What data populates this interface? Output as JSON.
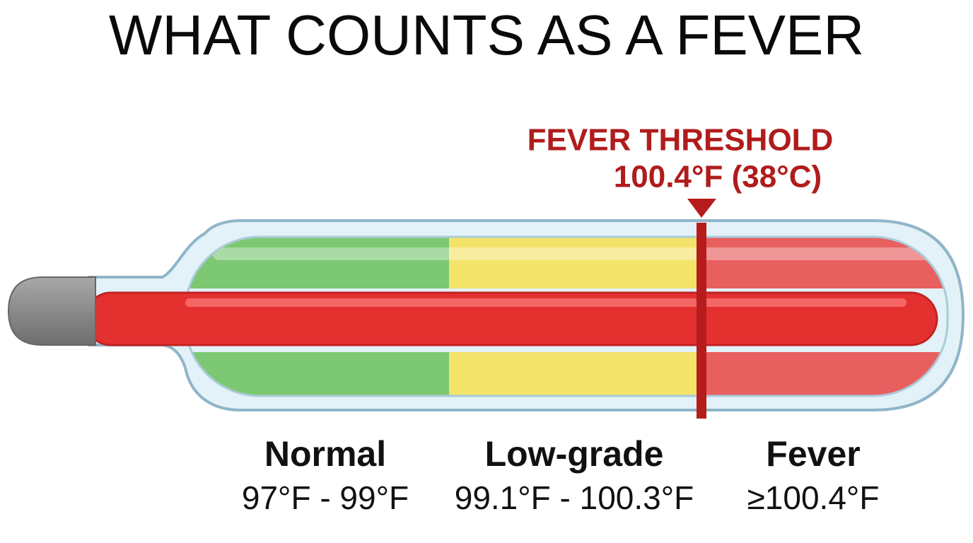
{
  "title": "WHAT COUNTS AS A FEVER",
  "threshold": {
    "label": "FEVER THRESHOLD",
    "value": "100.4°F (38°C)"
  },
  "zones": [
    {
      "name": "Normal",
      "range": "97°F - 99°F"
    },
    {
      "name": "Low-grade",
      "range": "99.1°F - 100.3°F"
    },
    {
      "name": "Fever",
      "range": "≥100.4°F"
    }
  ]
}
